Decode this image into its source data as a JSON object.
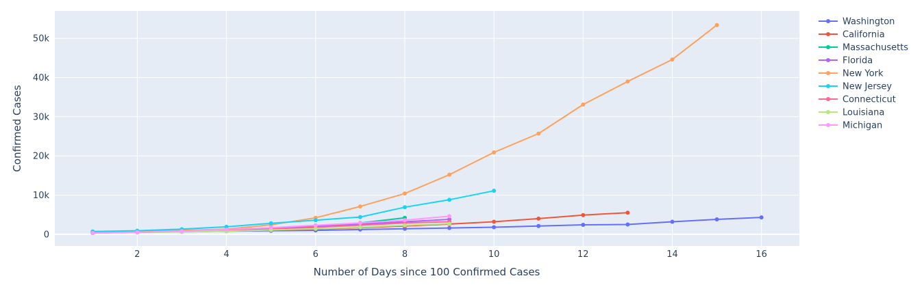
{
  "chart_data": {
    "type": "line",
    "xlabel": "Number of Days since 100 Confirmed Cases",
    "ylabel": "Confirmed Cases",
    "xlim": [
      0.15,
      16.85
    ],
    "ylim": [
      -3000,
      57000
    ],
    "x_ticks": [
      2,
      4,
      6,
      8,
      10,
      12,
      14,
      16
    ],
    "y_ticks": [
      0,
      10000,
      20000,
      30000,
      40000,
      50000
    ],
    "y_tick_labels": [
      "0",
      "10k",
      "20k",
      "30k",
      "40k",
      "50k"
    ],
    "grid": true,
    "legend_position": "right",
    "series": [
      {
        "name": "Washington",
        "color": "#636efa",
        "x": [
          1,
          2,
          3,
          4,
          5,
          6,
          7,
          8,
          9,
          10,
          11,
          12,
          13,
          14,
          15,
          16
        ],
        "y": [
          400,
          600,
          700,
          800,
          900,
          1000,
          1200,
          1400,
          1600,
          1800,
          2100,
          2400,
          2500,
          3200,
          3800,
          4300
        ]
      },
      {
        "name": "California",
        "color": "#ef553b",
        "x": [
          1,
          2,
          3,
          4,
          5,
          6,
          7,
          8,
          9,
          10,
          11,
          12,
          13
        ],
        "y": [
          500,
          600,
          700,
          900,
          1100,
          1300,
          1700,
          2100,
          2600,
          3200,
          4000,
          4900,
          5500
        ]
      },
      {
        "name": "Massachusetts",
        "color": "#00cc96",
        "x": [
          1,
          2,
          3,
          4,
          5,
          6,
          7,
          8
        ],
        "y": [
          400,
          500,
          600,
          800,
          1200,
          1800,
          2900,
          4200
        ]
      },
      {
        "name": "Florida",
        "color": "#ab63fa",
        "x": [
          1,
          2,
          3,
          4,
          5,
          6,
          7,
          8,
          9
        ],
        "y": [
          400,
          500,
          700,
          1000,
          1400,
          2000,
          2600,
          3200,
          3800
        ]
      },
      {
        "name": "New York",
        "color": "#ffa15a",
        "x": [
          1,
          2,
          3,
          4,
          5,
          6,
          7,
          8,
          9,
          10,
          11,
          12,
          13,
          14,
          15
        ],
        "y": [
          600,
          700,
          1000,
          1300,
          2400,
          4200,
          7100,
          10400,
          15200,
          20900,
          25700,
          33100,
          39000,
          44600,
          53400
        ]
      },
      {
        "name": "New Jersey",
        "color": "#19d3f3",
        "x": [
          1,
          2,
          3,
          4,
          5,
          6,
          7,
          8,
          9,
          10
        ],
        "y": [
          700,
          900,
          1300,
          1900,
          2800,
          3600,
          4400,
          6900,
          8800,
          11100
        ]
      },
      {
        "name": "Connecticut",
        "color": "#ff6692",
        "x": [
          1,
          2,
          3,
          4,
          5,
          6,
          7,
          8,
          9
        ],
        "y": [
          300,
          500,
          700,
          900,
          1300,
          1800,
          2300,
          2900,
          3200
        ]
      },
      {
        "name": "Louisiana",
        "color": "#b6e880",
        "x": [
          1,
          2,
          3,
          4,
          5,
          6,
          7,
          8,
          9
        ],
        "y": [
          300,
          500,
          600,
          800,
          1100,
          1400,
          1800,
          2300,
          2700
        ]
      },
      {
        "name": "Michigan",
        "color": "#ff97ff",
        "x": [
          1,
          2,
          3,
          4,
          5,
          6,
          7,
          8,
          9
        ],
        "y": [
          300,
          500,
          800,
          1200,
          1700,
          2300,
          2900,
          3600,
          4600
        ]
      }
    ]
  }
}
